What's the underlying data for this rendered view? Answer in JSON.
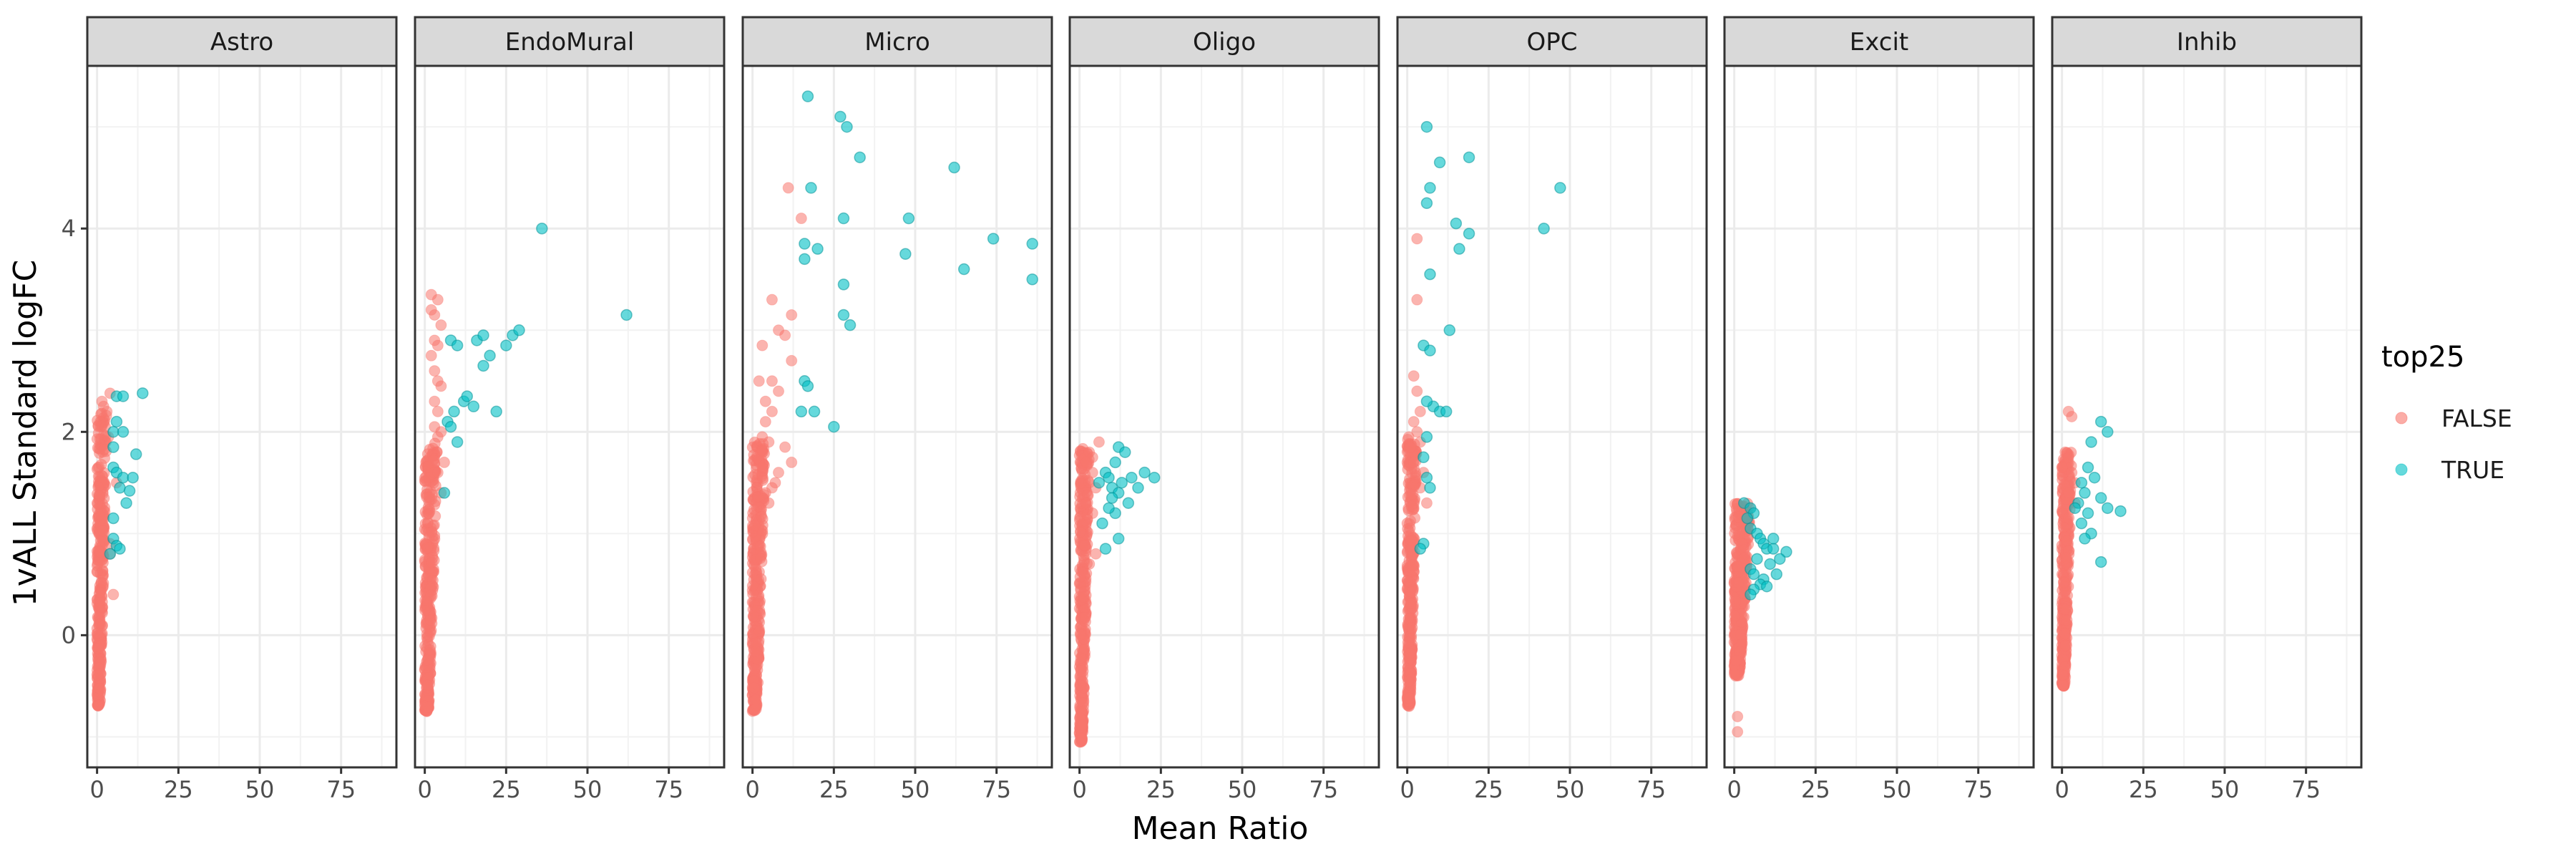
{
  "chart_data": {
    "type": "scatter",
    "facet_order": [
      "Astro",
      "EndoMural",
      "Micro",
      "Oligo",
      "OPC",
      "Excit",
      "Inhib"
    ],
    "xlabel": "Mean Ratio",
    "ylabel": "1vALL Standard logFC",
    "x_ticks": [
      0,
      25,
      50,
      75
    ],
    "y_ticks": [
      0,
      2,
      4
    ],
    "xlim": [
      -3,
      92
    ],
    "ylim": [
      -1.3,
      5.6
    ],
    "grid": true,
    "legend": {
      "title": "top25",
      "position": "right",
      "entries": [
        {
          "label": "FALSE",
          "color": "#F8766D"
        },
        {
          "label": "TRUE",
          "color": "#00BFC4"
        }
      ]
    },
    "point_alpha": 0.55,
    "panels": [
      {
        "facet": "Astro",
        "false_dense": {
          "x_range": [
            0,
            3
          ],
          "y_range": [
            -0.7,
            2.2
          ],
          "count": 300
        },
        "false_points": [
          [
            1.5,
            2.3
          ],
          [
            2,
            2.25
          ],
          [
            3,
            2.2
          ],
          [
            4,
            2.38
          ],
          [
            3.5,
            1.95
          ],
          [
            1,
            2.1
          ],
          [
            2.5,
            2.05
          ],
          [
            4,
            0.8
          ],
          [
            5,
            0.4
          ],
          [
            4,
            0.9
          ],
          [
            6,
            1.5
          ]
        ],
        "true_points": [
          [
            6,
            2.35
          ],
          [
            8,
            2.35
          ],
          [
            14,
            2.38
          ],
          [
            6,
            2.1
          ],
          [
            5,
            2.0
          ],
          [
            8,
            2.0
          ],
          [
            5,
            1.85
          ],
          [
            12,
            1.78
          ],
          [
            5,
            1.65
          ],
          [
            6,
            1.6
          ],
          [
            8,
            1.55
          ],
          [
            11,
            1.55
          ],
          [
            7,
            1.45
          ],
          [
            10,
            1.42
          ],
          [
            9,
            1.3
          ],
          [
            5,
            1.15
          ],
          [
            5,
            0.95
          ],
          [
            6,
            0.88
          ],
          [
            7,
            0.85
          ],
          [
            4,
            0.8
          ]
        ]
      },
      {
        "facet": "EndoMural",
        "false_dense": {
          "x_range": [
            0,
            4
          ],
          "y_range": [
            -0.75,
            1.9
          ],
          "count": 320
        },
        "false_points": [
          [
            2,
            3.35
          ],
          [
            4,
            3.3
          ],
          [
            2,
            3.2
          ],
          [
            3,
            3.15
          ],
          [
            5,
            3.05
          ],
          [
            3,
            2.9
          ],
          [
            4,
            2.85
          ],
          [
            2,
            2.75
          ],
          [
            3,
            2.6
          ],
          [
            4,
            2.5
          ],
          [
            5,
            2.45
          ],
          [
            3,
            2.3
          ],
          [
            4,
            2.2
          ],
          [
            5,
            2.0
          ],
          [
            3,
            2.05
          ],
          [
            4,
            1.95
          ],
          [
            4,
            1.6
          ],
          [
            6,
            1.7
          ],
          [
            5,
            1.4
          ]
        ],
        "true_points": [
          [
            8,
            2.9
          ],
          [
            10,
            2.85
          ],
          [
            12,
            2.3
          ],
          [
            16,
            2.9
          ],
          [
            18,
            2.95
          ],
          [
            20,
            2.75
          ],
          [
            22,
            2.2
          ],
          [
            25,
            2.85
          ],
          [
            27,
            2.95
          ],
          [
            29,
            3.0
          ],
          [
            18,
            2.65
          ],
          [
            15,
            2.25
          ],
          [
            13,
            2.35
          ],
          [
            9,
            2.2
          ],
          [
            7,
            2.1
          ],
          [
            10,
            1.9
          ],
          [
            8,
            2.05
          ],
          [
            6,
            1.4
          ],
          [
            36,
            4.0
          ],
          [
            62,
            3.15
          ]
        ]
      },
      {
        "facet": "Micro",
        "false_dense": {
          "x_range": [
            0,
            4
          ],
          "y_range": [
            -0.75,
            1.9
          ],
          "count": 320
        },
        "false_points": [
          [
            11,
            4.4
          ],
          [
            15,
            4.1
          ],
          [
            6,
            3.3
          ],
          [
            12,
            3.15
          ],
          [
            8,
            3.0
          ],
          [
            10,
            2.95
          ],
          [
            3,
            2.85
          ],
          [
            12,
            2.7
          ],
          [
            2,
            2.5
          ],
          [
            6,
            2.5
          ],
          [
            8,
            2.4
          ],
          [
            4,
            2.3
          ],
          [
            6,
            2.2
          ],
          [
            4,
            2.1
          ],
          [
            3,
            1.95
          ],
          [
            5,
            1.9
          ],
          [
            10,
            1.85
          ],
          [
            12,
            1.7
          ],
          [
            8,
            1.6
          ],
          [
            7,
            1.5
          ],
          [
            6,
            1.45
          ],
          [
            4,
            1.4
          ],
          [
            5,
            1.3
          ]
        ],
        "true_points": [
          [
            17,
            5.3
          ],
          [
            18,
            4.4
          ],
          [
            16,
            3.85
          ],
          [
            16,
            3.7
          ],
          [
            20,
            3.8
          ],
          [
            27,
            5.1
          ],
          [
            29,
            5.0
          ],
          [
            33,
            4.7
          ],
          [
            28,
            4.1
          ],
          [
            48,
            4.1
          ],
          [
            62,
            4.6
          ],
          [
            74,
            3.9
          ],
          [
            86,
            3.85
          ],
          [
            47,
            3.75
          ],
          [
            65,
            3.6
          ],
          [
            86,
            3.5
          ],
          [
            28,
            3.45
          ],
          [
            28,
            3.15
          ],
          [
            30,
            3.05
          ],
          [
            16,
            2.5
          ],
          [
            17,
            2.45
          ],
          [
            15,
            2.2
          ],
          [
            19,
            2.2
          ],
          [
            25,
            2.05
          ]
        ]
      },
      {
        "facet": "Oligo",
        "false_dense": {
          "x_range": [
            0,
            3
          ],
          "y_range": [
            -1.05,
            1.85
          ],
          "count": 320
        },
        "false_points": [
          [
            3,
            1.8
          ],
          [
            6,
            1.9
          ],
          [
            4,
            1.75
          ],
          [
            2,
            1.7
          ],
          [
            4,
            1.6
          ],
          [
            3,
            1.5
          ],
          [
            5,
            1.45
          ],
          [
            2,
            1.3
          ],
          [
            4,
            1.2
          ],
          [
            5,
            0.8
          ],
          [
            3,
            0.7
          ]
        ],
        "true_points": [
          [
            12,
            1.85
          ],
          [
            14,
            1.8
          ],
          [
            11,
            1.7
          ],
          [
            8,
            1.6
          ],
          [
            6,
            1.5
          ],
          [
            9,
            1.55
          ],
          [
            10,
            1.45
          ],
          [
            13,
            1.5
          ],
          [
            12,
            1.4
          ],
          [
            16,
            1.55
          ],
          [
            18,
            1.45
          ],
          [
            20,
            1.6
          ],
          [
            23,
            1.55
          ],
          [
            15,
            1.3
          ],
          [
            11,
            1.2
          ],
          [
            9,
            1.25
          ],
          [
            7,
            1.1
          ],
          [
            12,
            0.95
          ],
          [
            8,
            0.85
          ],
          [
            10,
            1.35
          ]
        ]
      },
      {
        "facet": "OPC",
        "false_dense": {
          "x_range": [
            0,
            3
          ],
          "y_range": [
            -0.7,
            1.95
          ],
          "count": 320
        },
        "false_points": [
          [
            3,
            3.9
          ],
          [
            3,
            3.3
          ],
          [
            2,
            2.55
          ],
          [
            3,
            2.4
          ],
          [
            4,
            2.2
          ],
          [
            2,
            2.1
          ],
          [
            3,
            2.0
          ],
          [
            4,
            1.9
          ],
          [
            2,
            1.7
          ],
          [
            5,
            1.6
          ],
          [
            4,
            1.45
          ],
          [
            6,
            1.3
          ]
        ],
        "true_points": [
          [
            6,
            5.0
          ],
          [
            7,
            4.4
          ],
          [
            6,
            4.25
          ],
          [
            10,
            4.65
          ],
          [
            19,
            4.7
          ],
          [
            47,
            4.4
          ],
          [
            15,
            4.05
          ],
          [
            19,
            3.95
          ],
          [
            16,
            3.8
          ],
          [
            42,
            4.0
          ],
          [
            7,
            3.55
          ],
          [
            5,
            2.85
          ],
          [
            7,
            2.8
          ],
          [
            13,
            3.0
          ],
          [
            8,
            2.25
          ],
          [
            10,
            2.2
          ],
          [
            6,
            2.3
          ],
          [
            12,
            2.2
          ],
          [
            6,
            1.95
          ],
          [
            5,
            1.75
          ],
          [
            7,
            1.45
          ],
          [
            6,
            1.55
          ],
          [
            5,
            0.9
          ],
          [
            4,
            0.85
          ]
        ]
      },
      {
        "facet": "Excit",
        "false_dense": {
          "x_range": [
            0,
            5
          ],
          "y_range": [
            -0.4,
            1.3
          ],
          "count": 380
        },
        "false_points": [
          [
            1,
            -0.8
          ],
          [
            1,
            -0.95
          ]
        ],
        "true_points": [
          [
            3,
            1.3
          ],
          [
            5,
            1.25
          ],
          [
            6,
            1.2
          ],
          [
            4,
            1.15
          ],
          [
            5,
            1.05
          ],
          [
            7,
            1.0
          ],
          [
            8,
            0.95
          ],
          [
            9,
            0.9
          ],
          [
            10,
            0.85
          ],
          [
            12,
            0.85
          ],
          [
            16,
            0.82
          ],
          [
            7,
            0.75
          ],
          [
            11,
            0.7
          ],
          [
            5,
            0.65
          ],
          [
            6,
            0.6
          ],
          [
            13,
            0.6
          ],
          [
            9,
            0.55
          ],
          [
            8,
            0.5
          ],
          [
            10,
            0.48
          ],
          [
            6,
            0.45
          ],
          [
            5,
            0.4
          ],
          [
            14,
            0.75
          ],
          [
            12,
            0.95
          ]
        ]
      },
      {
        "facet": "Inhib",
        "false_dense": {
          "x_range": [
            0,
            3
          ],
          "y_range": [
            -0.5,
            1.8
          ],
          "count": 320
        },
        "false_points": [
          [
            2,
            2.2
          ],
          [
            3,
            2.15
          ],
          [
            1,
            1.8
          ],
          [
            2,
            1.75
          ],
          [
            3,
            1.6
          ],
          [
            4,
            1.5
          ],
          [
            2,
            1.4
          ],
          [
            4,
            1.3
          ]
        ],
        "true_points": [
          [
            12,
            2.1
          ],
          [
            14,
            2.0
          ],
          [
            9,
            1.9
          ],
          [
            8,
            1.65
          ],
          [
            6,
            1.5
          ],
          [
            10,
            1.55
          ],
          [
            7,
            1.4
          ],
          [
            12,
            1.35
          ],
          [
            14,
            1.25
          ],
          [
            18,
            1.22
          ],
          [
            8,
            1.2
          ],
          [
            6,
            1.1
          ],
          [
            9,
            1.0
          ],
          [
            12,
            0.72
          ],
          [
            5,
            1.3
          ],
          [
            4,
            1.25
          ],
          [
            7,
            0.95
          ]
        ]
      }
    ]
  }
}
